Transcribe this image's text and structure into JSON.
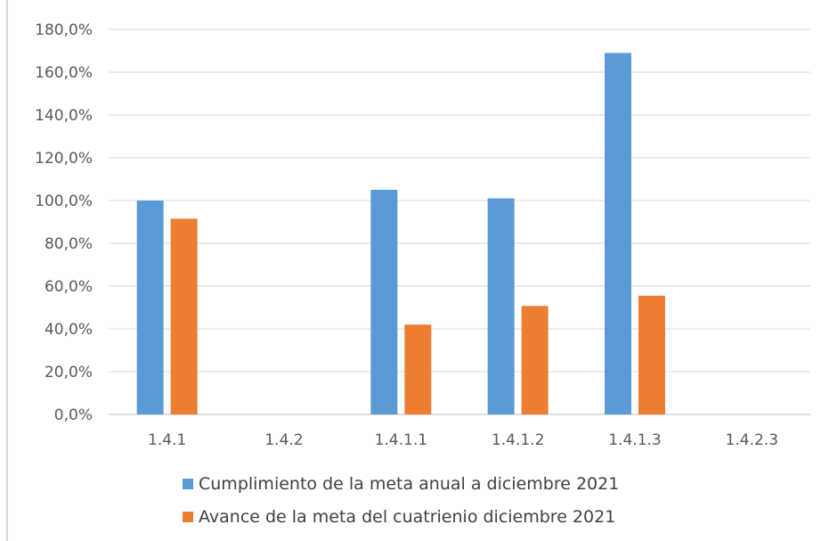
{
  "chart_data": {
    "type": "bar",
    "categories": [
      "1.4.1",
      "1.4.2",
      "1.4.1.1",
      "1.4.1.2",
      "1.4.1.3",
      "1.4.2.3"
    ],
    "series": [
      {
        "name": "Cumplimiento de la meta anual a diciembre 2021",
        "values": [
          100.0,
          0,
          105.0,
          101.0,
          169.0,
          0
        ]
      },
      {
        "name": "Avance de la meta del cuatrienio diciembre 2021",
        "values": [
          91.5,
          0,
          42.0,
          50.7,
          55.5,
          0
        ]
      }
    ],
    "ylim": [
      0,
      180
    ],
    "yticks": [
      "0,0%",
      "20,0%",
      "40,0%",
      "60,0%",
      "80,0%",
      "100,0%",
      "120,0%",
      "140,0%",
      "160,0%",
      "180,0%"
    ],
    "grid": true,
    "legend_position": "bottom",
    "colors": [
      "#5b9bd5",
      "#ed7d31"
    ]
  }
}
